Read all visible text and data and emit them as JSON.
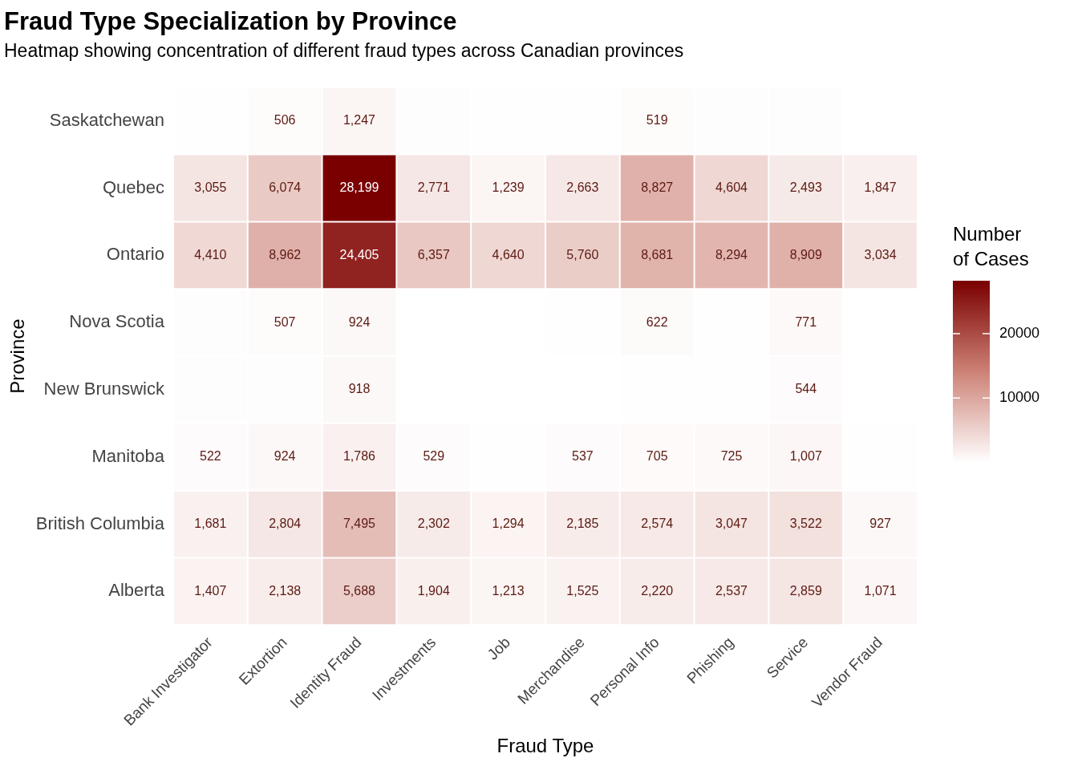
{
  "chart_data": {
    "type": "heatmap",
    "title": "Fraud Type Specialization by Province",
    "subtitle": "Heatmap showing concentration of different fraud types across Canadian provinces",
    "xlabel": "Fraud Type",
    "ylabel": "Province",
    "clabel": "Number of Cases",
    "categories": [
      "Bank Investigator",
      "Extortion",
      "Identity Fraud",
      "Investments",
      "Job",
      "Merchandise",
      "Personal Info",
      "Phishing",
      "Service",
      "Vendor Fraud"
    ],
    "y_categories": [
      "Saskatchewan",
      "Quebec",
      "Ontario",
      "Nova Scotia",
      "New Brunswick",
      "Manitoba",
      "British Columbia",
      "Alberta"
    ],
    "cells": [
      [
        250,
        506,
        1247,
        300,
        200,
        250,
        519,
        300,
        300,
        150
      ],
      [
        3055,
        6074,
        28199,
        2771,
        1239,
        2663,
        8827,
        4604,
        2493,
        1847
      ],
      [
        4410,
        8962,
        24405,
        6357,
        4640,
        5760,
        8681,
        8294,
        8909,
        3034
      ],
      [
        300,
        507,
        924,
        150,
        100,
        250,
        622,
        250,
        771,
        100
      ],
      [
        350,
        300,
        918,
        150,
        100,
        150,
        250,
        200,
        544,
        100
      ],
      [
        522,
        924,
        1786,
        529,
        250,
        537,
        705,
        725,
        1007,
        200
      ],
      [
        1681,
        2804,
        7495,
        2302,
        1294,
        2185,
        2574,
        3047,
        3522,
        927
      ],
      [
        1407,
        2138,
        5688,
        1904,
        1213,
        1525,
        2220,
        2537,
        2859,
        1071
      ]
    ],
    "cell_labels": [
      [
        null,
        "506",
        "1,247",
        null,
        null,
        null,
        "519",
        null,
        null,
        null
      ],
      [
        "3,055",
        "6,074",
        "28,199",
        "2,771",
        "1,239",
        "2,663",
        "8,827",
        "4,604",
        "2,493",
        "1,847"
      ],
      [
        "4,410",
        "8,962",
        "24,405",
        "6,357",
        "4,640",
        "5,760",
        "8,681",
        "8,294",
        "8,909",
        "3,034"
      ],
      [
        null,
        "507",
        "924",
        null,
        null,
        null,
        "622",
        null,
        "771",
        null
      ],
      [
        null,
        null,
        "918",
        null,
        null,
        null,
        null,
        null,
        "544",
        null
      ],
      [
        "522",
        "924",
        "1,786",
        "529",
        null,
        "537",
        "705",
        "725",
        "1,007",
        null
      ],
      [
        "1,681",
        "2,804",
        "7,495",
        "2,302",
        "1,294",
        "2,185",
        "2,574",
        "3,047",
        "3,522",
        "927"
      ],
      [
        "1,407",
        "2,138",
        "5,688",
        "1,904",
        "1,213",
        "1,525",
        "2,220",
        "2,537",
        "2,859",
        "1,071"
      ]
    ],
    "clim": [
      100,
      28199
    ],
    "cticks": [
      10000,
      20000
    ]
  }
}
